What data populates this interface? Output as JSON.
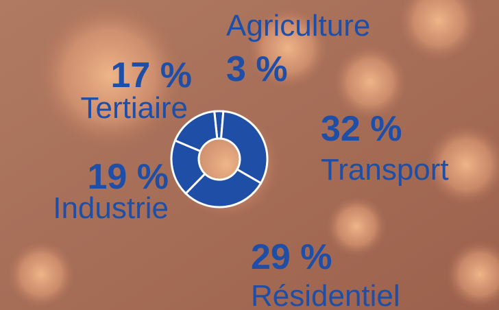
{
  "chart_data": {
    "type": "pie",
    "categories": [
      "Agriculture",
      "Transport",
      "Résidentiel",
      "Industrie",
      "Tertiaire"
    ],
    "values": [
      3,
      32,
      29,
      19,
      17
    ],
    "value_labels": [
      "3 %",
      "32 %",
      "29 %",
      "19 %",
      "17 %"
    ],
    "color": "#1f4ea6"
  }
}
